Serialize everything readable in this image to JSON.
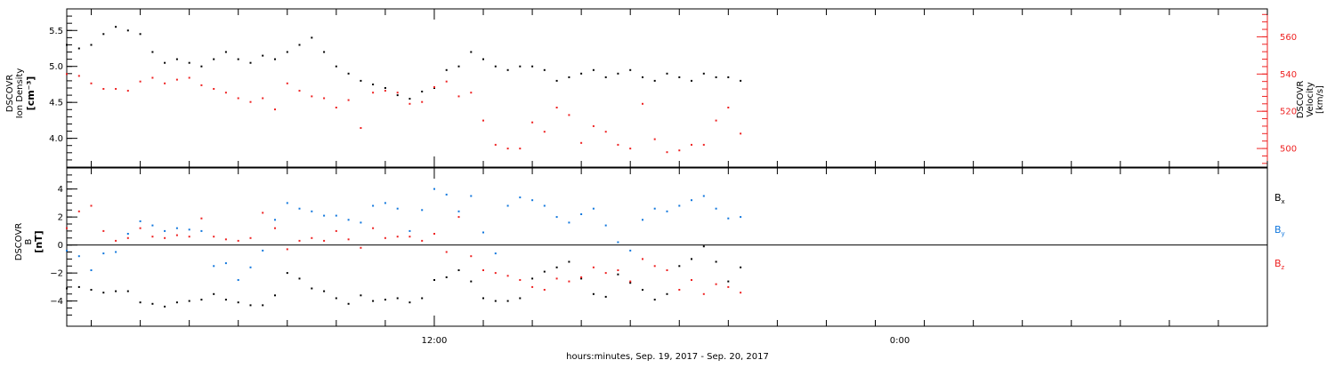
{
  "chart_data": [
    {
      "type": "scatter",
      "panel": "top",
      "ylabel_left": [
        "DSCOVR",
        "Ion Density"
      ],
      "ylabel_left_unit": "[cm⁻³]",
      "ylabel_right": [
        "DSCOVR",
        "Velocity",
        "[km/s]"
      ],
      "ylim_left": [
        3.6,
        5.8
      ],
      "yticks_left": [
        4.0,
        4.5,
        5.0,
        5.5
      ],
      "ytick_labels_left": [
        "4.0",
        "4.5",
        "5.0",
        "5.5"
      ],
      "ylim_right": [
        490,
        575
      ],
      "yticks_right": [
        500,
        520,
        540,
        560
      ],
      "ytick_labels_right": [
        "500",
        "520",
        "540",
        "560"
      ],
      "colors": {
        "density": "#000000",
        "velocity": "#ee2222"
      },
      "series": [
        {
          "axis": "left",
          "color": "#000000",
          "x": [
            -1,
            -0.5,
            0,
            0.5,
            1,
            1.5,
            2,
            2.5,
            3,
            3.5,
            4,
            4.5,
            5,
            5.5,
            6,
            6.5,
            7,
            7.5,
            8,
            8.5,
            9,
            9.5,
            10,
            10.5,
            11,
            11.5,
            12,
            12.5,
            13,
            13.5,
            14,
            14.5,
            15,
            15.5,
            16,
            16.5,
            17,
            17.5,
            18,
            18.5,
            19,
            19.5,
            20,
            20.5,
            21,
            21.5,
            22,
            22.5,
            23,
            23.5,
            24,
            24.5,
            25,
            25.5,
            26,
            26.5
          ],
          "y": [
            5.3,
            5.25,
            5.3,
            5.45,
            5.55,
            5.5,
            5.45,
            5.2,
            5.05,
            5.1,
            5.05,
            5.0,
            5.1,
            5.2,
            5.1,
            5.05,
            5.15,
            5.1,
            5.2,
            5.3,
            5.4,
            5.2,
            5.0,
            4.9,
            4.8,
            4.75,
            4.7,
            4.6,
            4.55,
            4.65,
            4.7,
            4.95,
            5.0,
            5.2,
            5.1,
            5.0,
            4.95,
            5.0,
            5.0,
            4.95,
            4.8,
            4.85,
            4.9,
            4.95,
            4.85,
            4.9,
            4.95,
            4.85,
            4.8,
            4.9,
            4.85,
            4.8,
            4.9,
            4.85,
            4.85,
            4.8
          ]
        },
        {
          "axis": "right",
          "color": "#ee2222",
          "x": [
            -1,
            -0.5,
            0,
            0.5,
            1,
            1.5,
            2,
            2.5,
            3,
            3.5,
            4,
            4.5,
            5,
            5.5,
            6,
            6.5,
            7,
            7.5,
            8,
            8.5,
            9,
            9.5,
            10,
            10.5,
            11,
            11.5,
            12,
            12.5,
            13,
            13.5,
            14,
            14.5,
            15,
            15.5,
            16,
            16.5,
            17,
            17.5,
            18,
            18.5,
            19,
            19.5,
            20,
            20.5,
            21,
            21.5,
            22,
            22.5,
            23,
            23.5,
            24,
            24.5,
            25,
            25.5,
            26,
            26.5
          ],
          "y": [
            540,
            539,
            535,
            532,
            532,
            531,
            536,
            538,
            535,
            537,
            538,
            534,
            532,
            530,
            527,
            525,
            527,
            521,
            535,
            531,
            528,
            527,
            522,
            526,
            511,
            530,
            531,
            530,
            524,
            525,
            533,
            536,
            528,
            530,
            515,
            502,
            500,
            500,
            514,
            509,
            522,
            518,
            503,
            512,
            509,
            502,
            500,
            524,
            505,
            498,
            499,
            502,
            502,
            515,
            522,
            508
          ]
        }
      ]
    },
    {
      "type": "scatter",
      "panel": "bottom",
      "ylabel": [
        "DSCOVR",
        "B"
      ],
      "ylabel_unit": "[nT]",
      "ylim": [
        -5.8,
        5.5
      ],
      "yticks": [
        -4,
        -2,
        0,
        2,
        4
      ],
      "ytick_labels": [
        "−4",
        "−2",
        "0",
        "2",
        "4"
      ],
      "zero_line": true,
      "series": [
        {
          "name": "Bx",
          "color": "#000000",
          "x": [
            -1,
            -0.5,
            0,
            0.5,
            1,
            1.5,
            2,
            2.5,
            3,
            3.5,
            4,
            4.5,
            5,
            5.5,
            6,
            6.5,
            7,
            7.5,
            8,
            8.5,
            9,
            9.5,
            10,
            10.5,
            11,
            11.5,
            12,
            12.5,
            13,
            13.5,
            14,
            14.5,
            15,
            15.5,
            16,
            16.5,
            17,
            17.5,
            18,
            18.5,
            19,
            19.5,
            20,
            20.5,
            21,
            21.5,
            22,
            22.5,
            23,
            23.5,
            24,
            24.5,
            25,
            25.5,
            26,
            26.5
          ],
          "y": [
            -3.1,
            -3.0,
            -3.2,
            -3.4,
            -3.3,
            -3.3,
            -4.1,
            -4.2,
            -4.4,
            -4.1,
            -4.0,
            -3.9,
            -3.5,
            -3.9,
            -4.1,
            -4.3,
            -4.3,
            -3.6,
            -2.0,
            -2.4,
            -3.1,
            -3.3,
            -3.8,
            -4.2,
            -3.6,
            -4.0,
            -3.9,
            -3.8,
            -4.1,
            -3.8,
            -2.5,
            -2.3,
            -1.8,
            -2.6,
            -3.8,
            -4.0,
            -4.0,
            -3.8,
            -2.4,
            -1.9,
            -1.6,
            -1.2,
            -2.4,
            -3.5,
            -3.7,
            -2.1,
            -2.7,
            -3.2,
            -3.9,
            -3.5,
            -1.5,
            -1.0,
            -0.1,
            -1.2,
            -2.6,
            -1.6
          ]
        },
        {
          "name": "By",
          "color": "#1177dd",
          "x": [
            -1,
            -0.5,
            0,
            0.5,
            1,
            1.5,
            2,
            2.5,
            3,
            3.5,
            4,
            4.5,
            5,
            5.5,
            6,
            6.5,
            7,
            7.5,
            8,
            8.5,
            9,
            9.5,
            10,
            10.5,
            11,
            11.5,
            12,
            12.5,
            13,
            13.5,
            14,
            14.5,
            15,
            15.5,
            16,
            16.5,
            17,
            17.5,
            18,
            18.5,
            19,
            19.5,
            20,
            20.5,
            21,
            21.5,
            22,
            22.5,
            23,
            23.5,
            24,
            24.5,
            25,
            25.5,
            26,
            26.5
          ],
          "y": [
            -0.4,
            -0.8,
            -1.8,
            -0.6,
            -0.5,
            0.8,
            1.7,
            1.4,
            1.0,
            1.2,
            1.1,
            1.0,
            -1.5,
            -1.3,
            -2.5,
            -1.6,
            -0.4,
            1.8,
            3.0,
            2.6,
            2.4,
            2.1,
            2.1,
            1.8,
            1.6,
            2.8,
            3.0,
            2.6,
            1.0,
            2.5,
            4.0,
            3.6,
            2.4,
            3.5,
            0.9,
            -0.6,
            2.8,
            3.4,
            3.2,
            2.8,
            2.0,
            1.6,
            2.2,
            2.6,
            1.4,
            0.2,
            -0.4,
            1.8,
            2.6,
            2.4,
            2.8,
            3.2,
            3.5,
            2.6,
            1.9,
            2.0
          ]
        },
        {
          "name": "Bz",
          "color": "#ee2222",
          "x": [
            -1,
            -0.5,
            0,
            0.5,
            1,
            1.5,
            2,
            2.5,
            3,
            3.5,
            4,
            4.5,
            5,
            5.5,
            6,
            6.5,
            7,
            7.5,
            8,
            8.5,
            9,
            9.5,
            10,
            10.5,
            11,
            11.5,
            12,
            12.5,
            13,
            13.5,
            14,
            14.5,
            15,
            15.5,
            16,
            16.5,
            17,
            17.5,
            18,
            18.5,
            19,
            19.5,
            20,
            20.5,
            21,
            21.5,
            22,
            22.5,
            23,
            23.5,
            24,
            24.5,
            25,
            25.5,
            26,
            26.5
          ],
          "y": [
            1.2,
            2.4,
            2.8,
            1.0,
            0.3,
            0.5,
            1.2,
            0.6,
            0.5,
            0.7,
            0.6,
            1.9,
            0.6,
            0.4,
            0.3,
            0.5,
            2.3,
            1.2,
            -0.3,
            0.3,
            0.5,
            0.3,
            1.0,
            0.4,
            -0.2,
            1.2,
            0.5,
            0.6,
            0.6,
            0.3,
            0.8,
            -0.5,
            2.0,
            -0.8,
            -1.8,
            -2.0,
            -2.2,
            -2.5,
            -3.0,
            -3.2,
            -2.4,
            -2.6,
            -2.3,
            -1.6,
            -2.0,
            -1.8,
            -2.6,
            -1.0,
            -1.5,
            -1.8,
            -3.2,
            -2.5,
            -3.5,
            -2.8,
            -3.0,
            -3.4
          ]
        }
      ],
      "legend": [
        "Bx",
        "By",
        "Bz"
      ],
      "legend_position": "right"
    }
  ],
  "x_axis": {
    "xlim": [
      -1,
      48
    ],
    "ticks": [
      14,
      33
    ],
    "tick_labels": [
      "12:00",
      "0:00"
    ],
    "title": "hours:minutes, Sep. 19, 2017 - Sep. 20, 2017"
  },
  "legend_text": {
    "bx_main": "B",
    "bx_sub": "x",
    "by_main": "B",
    "by_sub": "y",
    "bz_main": "B",
    "bz_sub": "z"
  }
}
